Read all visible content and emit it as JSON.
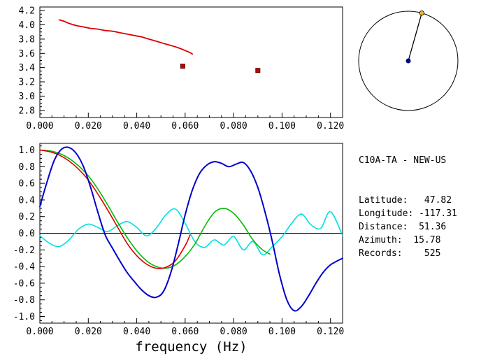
{
  "info_panel": {
    "title": "C10A-TA - NEW-US",
    "lines": [
      "Latitude:   47.82",
      "Longitude: -117.31",
      "Distance:  51.36",
      "Azimuth:  15.78",
      "Records:    525"
    ]
  },
  "azimuth_dial": {
    "azimuth_deg": 15.78,
    "circle_color": "#000000",
    "center_color": "#00008b",
    "marker_color": "#f0b429"
  },
  "chart_data": [
    {
      "id": "dispersion",
      "type": "line",
      "title": "",
      "xlabel": "",
      "ylabel": "",
      "xlim": [
        0,
        0.125
      ],
      "ylim": [
        2.7,
        4.25
      ],
      "grid": false,
      "zero_line": false,
      "minor_x": 0.005,
      "minor_y": 0.05,
      "xticks": [
        0,
        0.02,
        0.04,
        0.06,
        0.08,
        0.1,
        0.12
      ],
      "xtick_labels": [
        "0.000",
        "0.020",
        "0.040",
        "0.060",
        "0.080",
        "0.100",
        "0.120"
      ],
      "yticks": [
        2.8,
        3.0,
        3.2,
        3.4,
        3.6,
        3.8,
        4.0,
        4.2
      ],
      "ytick_labels": [
        "2.8",
        "3.0",
        "3.2",
        "3.4",
        "3.6",
        "3.8",
        "4.0",
        "4.2"
      ],
      "series": [
        {
          "name": "red",
          "color": "#dd0000",
          "width": 1.8,
          "x": [
            0.008,
            0.01,
            0.012,
            0.015,
            0.018,
            0.021,
            0.024,
            0.027,
            0.03,
            0.033,
            0.036,
            0.039,
            0.042,
            0.045,
            0.048,
            0.051,
            0.054,
            0.057,
            0.06,
            0.062,
            0.063
          ],
          "y": [
            4.07,
            4.05,
            4.02,
            3.99,
            3.97,
            3.95,
            3.94,
            3.92,
            3.91,
            3.89,
            3.87,
            3.85,
            3.83,
            3.8,
            3.77,
            3.74,
            3.71,
            3.68,
            3.64,
            3.61,
            3.59
          ]
        }
      ],
      "markers": [
        {
          "x": 0.059,
          "y": 3.42,
          "color": "#cc0000"
        },
        {
          "x": 0.09,
          "y": 3.36,
          "color": "#cc0000"
        }
      ]
    },
    {
      "id": "spectra",
      "type": "line",
      "title": "",
      "xlabel": "frequency (Hz)",
      "ylabel": "",
      "xlim": [
        0,
        0.125
      ],
      "ylim": [
        -1.08,
        1.08
      ],
      "grid": false,
      "zero_line": true,
      "minor_x": 0.005,
      "minor_y": 0.05,
      "xticks": [
        0,
        0.02,
        0.04,
        0.06,
        0.08,
        0.1,
        0.12
      ],
      "xtick_labels": [
        "0.000",
        "0.020",
        "0.040",
        "0.060",
        "0.080",
        "0.100",
        "0.120"
      ],
      "yticks": [
        -1.0,
        -0.8,
        -0.6,
        -0.4,
        -0.2,
        0.0,
        0.2,
        0.4,
        0.6,
        0.8,
        1.0
      ],
      "ytick_labels": [
        "-1.0",
        "-0.8",
        "-0.6",
        "-0.4",
        "-0.2",
        "0.0",
        "0.2",
        "0.4",
        "0.6",
        "0.8",
        "1.0"
      ],
      "series": [
        {
          "name": "cyan",
          "color": "#00e0e0",
          "width": 1.6,
          "x": [
            0.0,
            0.004,
            0.008,
            0.012,
            0.016,
            0.02,
            0.024,
            0.028,
            0.032,
            0.036,
            0.04,
            0.044,
            0.048,
            0.052,
            0.056,
            0.06,
            0.064,
            0.068,
            0.072,
            0.076,
            0.08,
            0.084,
            0.088,
            0.092,
            0.096,
            0.1,
            0.104,
            0.108,
            0.112,
            0.116,
            0.12,
            0.125
          ],
          "y": [
            -0.03,
            -0.12,
            -0.16,
            -0.08,
            0.05,
            0.11,
            0.07,
            0.02,
            0.09,
            0.14,
            0.07,
            -0.03,
            0.06,
            0.22,
            0.29,
            0.12,
            -0.1,
            -0.17,
            -0.08,
            -0.14,
            -0.04,
            -0.2,
            -0.1,
            -0.26,
            -0.16,
            -0.04,
            0.12,
            0.23,
            0.1,
            0.06,
            0.26,
            -0.03
          ]
        },
        {
          "name": "green",
          "color": "#00bb00",
          "width": 1.6,
          "x": [
            0.0,
            0.004,
            0.008,
            0.012,
            0.016,
            0.02,
            0.024,
            0.028,
            0.032,
            0.036,
            0.04,
            0.044,
            0.048,
            0.052,
            0.056,
            0.06,
            0.064,
            0.068,
            0.072,
            0.076,
            0.08,
            0.084,
            0.088,
            0.092,
            0.095
          ],
          "y": [
            1.0,
            0.99,
            0.96,
            0.9,
            0.81,
            0.69,
            0.53,
            0.34,
            0.14,
            -0.05,
            -0.21,
            -0.33,
            -0.4,
            -0.42,
            -0.38,
            -0.28,
            -0.13,
            0.08,
            0.25,
            0.3,
            0.24,
            0.1,
            -0.08,
            -0.2,
            -0.25
          ]
        },
        {
          "name": "red",
          "color": "#dd0000",
          "width": 1.6,
          "x": [
            0.0,
            0.004,
            0.008,
            0.012,
            0.016,
            0.02,
            0.024,
            0.028,
            0.032,
            0.036,
            0.04,
            0.044,
            0.048,
            0.052,
            0.056,
            0.06,
            0.062
          ],
          "y": [
            1.0,
            0.98,
            0.94,
            0.87,
            0.77,
            0.64,
            0.47,
            0.28,
            0.08,
            -0.12,
            -0.27,
            -0.37,
            -0.42,
            -0.41,
            -0.33,
            -0.15,
            -0.02
          ]
        },
        {
          "name": "blue",
          "color": "#0000cc",
          "width": 2,
          "x": [
            0.0,
            0.003,
            0.006,
            0.009,
            0.012,
            0.015,
            0.018,
            0.021,
            0.024,
            0.027,
            0.03,
            0.033,
            0.036,
            0.039,
            0.042,
            0.045,
            0.048,
            0.051,
            0.054,
            0.057,
            0.06,
            0.063,
            0.066,
            0.069,
            0.072,
            0.075,
            0.078,
            0.081,
            0.084,
            0.087,
            0.09,
            0.093,
            0.096,
            0.099,
            0.102,
            0.105,
            0.108,
            0.111,
            0.114,
            0.117,
            0.12,
            0.125
          ],
          "y": [
            0.32,
            0.62,
            0.88,
            1.01,
            1.03,
            0.96,
            0.8,
            0.55,
            0.25,
            -0.02,
            -0.18,
            -0.33,
            -0.47,
            -0.58,
            -0.68,
            -0.75,
            -0.77,
            -0.7,
            -0.48,
            -0.15,
            0.22,
            0.52,
            0.72,
            0.82,
            0.86,
            0.84,
            0.8,
            0.83,
            0.85,
            0.75,
            0.55,
            0.25,
            -0.1,
            -0.5,
            -0.8,
            -0.93,
            -0.88,
            -0.75,
            -0.6,
            -0.47,
            -0.38,
            -0.3
          ]
        }
      ],
      "markers": []
    }
  ]
}
